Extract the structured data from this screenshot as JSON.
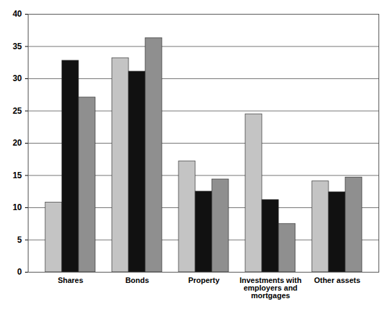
{
  "chart_data": {
    "type": "bar",
    "categories": [
      "Shares",
      "Bonds",
      "Property",
      "Investments with employers and mortgages",
      "Other assets"
    ],
    "series": [
      {
        "color": "#c4c4c4",
        "values": [
          10.8,
          33.2,
          17.2,
          24.5,
          14.1
        ]
      },
      {
        "color": "#111111",
        "values": [
          32.8,
          31.1,
          12.5,
          11.2,
          12.4
        ]
      },
      {
        "color": "#8f8f8f",
        "values": [
          27.1,
          36.3,
          14.4,
          7.5,
          14.7
        ]
      }
    ],
    "ylim": [
      0,
      40
    ],
    "yticks": [
      0,
      5,
      10,
      15,
      20,
      25,
      30,
      35,
      40
    ],
    "grid": true
  }
}
